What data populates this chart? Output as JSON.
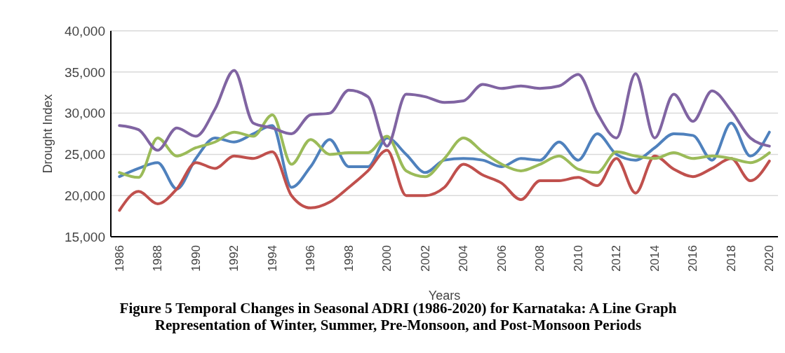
{
  "chart_data": {
    "type": "line",
    "title": "Figure 5 Temporal Changes in Seasonal ADRI (1986-2020) for Karnataka: A Line Graph Representation of Winter, Summer, Pre-Monsoon, and Post-Monsoon Periods",
    "xlabel": "Years",
    "ylabel": "Drought Index",
    "categories": [
      "1986",
      null,
      "1988",
      null,
      "1990",
      null,
      "1992",
      null,
      "1994",
      null,
      "1996",
      null,
      "1998",
      null,
      "2000",
      null,
      "2002",
      null,
      "2004",
      null,
      "2006",
      null,
      "2008",
      null,
      "2010",
      null,
      "2012",
      null,
      "2014",
      null,
      "2016",
      null,
      "2018",
      null,
      "2020"
    ],
    "series": [
      {
        "color": "#4f81bd",
        "values": [
          22300,
          23300,
          24000,
          20800,
          24500,
          27000,
          26500,
          27500,
          28500,
          21000,
          23500,
          26800,
          23500,
          23500,
          27000,
          25000,
          22800,
          24300,
          24500,
          24300,
          23500,
          24500,
          24300,
          26500,
          24300,
          27500,
          25000,
          24300,
          25800,
          27500,
          27300,
          24300,
          28800,
          24800,
          27700
        ]
      },
      {
        "color": "#c0504d",
        "values": [
          18200,
          20500,
          19000,
          20800,
          24000,
          23300,
          24800,
          24500,
          25300,
          20000,
          18500,
          19200,
          21000,
          23000,
          25500,
          20000,
          20000,
          21000,
          23800,
          22500,
          21500,
          19500,
          21800,
          21800,
          22200,
          21200,
          24500,
          20300,
          24800,
          23200,
          22300,
          23300,
          24500,
          21800,
          24200
        ]
      },
      {
        "color": "#9bbb59",
        "values": [
          22800,
          22200,
          27000,
          24800,
          25800,
          26500,
          27700,
          27200,
          29800,
          23800,
          26800,
          25000,
          25200,
          25200,
          27200,
          23000,
          22300,
          24500,
          27000,
          25300,
          23800,
          23000,
          23800,
          24800,
          23200,
          22800,
          25300,
          24800,
          24500,
          25200,
          24500,
          24800,
          24500,
          24000,
          25200
        ]
      },
      {
        "color": "#8064a2",
        "values": [
          28500,
          28000,
          25500,
          28200,
          27200,
          30500,
          35200,
          28800,
          28200,
          27500,
          29800,
          30000,
          32800,
          32000,
          26000,
          32300,
          32000,
          31300,
          31500,
          33500,
          33000,
          33300,
          33000,
          33300,
          34700,
          30000,
          27000,
          34800,
          27000,
          32300,
          29000,
          32700,
          30300,
          27000,
          26000
        ]
      }
    ],
    "ylim": [
      15000,
      40000
    ],
    "yticks": [
      {
        "value": 15000,
        "label": "15,000"
      },
      {
        "value": 20000,
        "label": "20,000"
      },
      {
        "value": 25000,
        "label": "25,000"
      },
      {
        "value": 30000,
        "label": "30,000"
      },
      {
        "value": 35000,
        "label": "35,000"
      },
      {
        "value": 40000,
        "label": "40,000"
      }
    ],
    "grid": "y",
    "legend": false,
    "marker": "none",
    "line_style": "solid"
  }
}
